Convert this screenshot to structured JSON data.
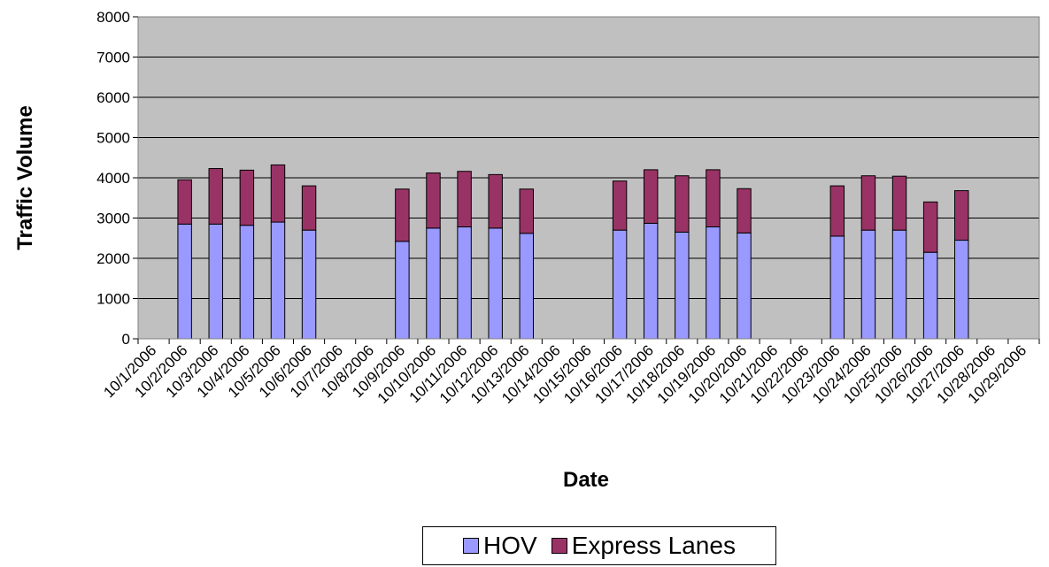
{
  "chart_data": {
    "type": "bar",
    "stacked": true,
    "xlabel": "Date",
    "ylabel": "Traffic Volume",
    "ylim": [
      0,
      8000
    ],
    "yticks": [
      0,
      1000,
      2000,
      3000,
      4000,
      5000,
      6000,
      7000,
      8000
    ],
    "grid": true,
    "legend_position": "bottom",
    "categories": [
      "10/1/2006",
      "10/2/2006",
      "10/3/2006",
      "10/4/2006",
      "10/5/2006",
      "10/6/2006",
      "10/7/2006",
      "10/8/2006",
      "10/9/2006",
      "10/10/2006",
      "10/11/2006",
      "10/12/2006",
      "10/13/2006",
      "10/14/2006",
      "10/15/2006",
      "10/16/2006",
      "10/17/2006",
      "10/18/2006",
      "10/19/2006",
      "10/20/2006",
      "10/21/2006",
      "10/22/2006",
      "10/23/2006",
      "10/24/2006",
      "10/25/2006",
      "10/26/2006",
      "10/27/2006",
      "10/28/2006",
      "10/29/2006"
    ],
    "series": [
      {
        "name": "HOV",
        "color": "#9999ff",
        "values": [
          null,
          2850,
          2850,
          2820,
          2900,
          2700,
          null,
          null,
          2420,
          2750,
          2780,
          2750,
          2620,
          null,
          null,
          2700,
          2870,
          2650,
          2780,
          2630,
          null,
          null,
          2550,
          2700,
          2700,
          2150,
          2450,
          null,
          null
        ]
      },
      {
        "name": "Express Lanes",
        "color": "#993366",
        "values": [
          null,
          1100,
          1380,
          1370,
          1420,
          1100,
          null,
          null,
          1300,
          1370,
          1380,
          1330,
          1100,
          null,
          null,
          1220,
          1330,
          1400,
          1420,
          1100,
          null,
          null,
          1250,
          1350,
          1340,
          1250,
          1230,
          null,
          null
        ]
      }
    ]
  }
}
